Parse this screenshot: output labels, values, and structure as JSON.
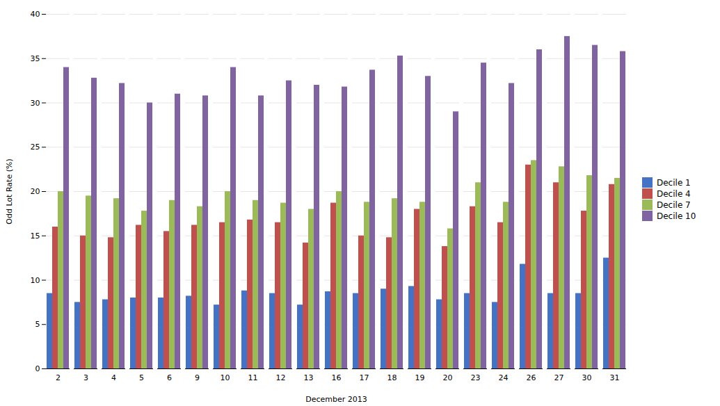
{
  "chart_data": {
    "type": "bar",
    "categories": [
      "2",
      "3",
      "4",
      "5",
      "6",
      "9",
      "10",
      "11",
      "12",
      "13",
      "16",
      "17",
      "18",
      "19",
      "20",
      "23",
      "24",
      "26",
      "27",
      "30",
      "31"
    ],
    "series": [
      {
        "name": "Decile 1",
        "color": "#4472C4",
        "values": [
          8.5,
          7.5,
          7.8,
          8.0,
          8.0,
          8.2,
          7.2,
          8.8,
          8.5,
          7.2,
          8.7,
          8.5,
          9.0,
          9.3,
          7.8,
          8.5,
          7.5,
          11.8,
          8.5,
          8.5,
          12.5
        ]
      },
      {
        "name": "Decile 4",
        "color": "#C0504D",
        "values": [
          16.0,
          15.0,
          14.8,
          16.2,
          15.5,
          16.2,
          16.5,
          16.8,
          16.5,
          14.2,
          18.7,
          15.0,
          14.8,
          18.0,
          13.8,
          18.3,
          16.5,
          23.0,
          21.0,
          17.8,
          20.8
        ]
      },
      {
        "name": "Decile 7",
        "color": "#9BBB59",
        "values": [
          20.0,
          19.5,
          19.2,
          17.8,
          19.0,
          18.3,
          20.0,
          19.0,
          18.7,
          18.0,
          20.0,
          18.8,
          19.2,
          18.8,
          15.8,
          21.0,
          18.8,
          23.5,
          22.8,
          21.8,
          21.5
        ]
      },
      {
        "name": "Decile 10",
        "color": "#8064A2",
        "values": [
          34.0,
          32.8,
          32.2,
          30.0,
          31.0,
          30.8,
          34.0,
          30.8,
          32.5,
          32.0,
          31.8,
          33.7,
          35.3,
          33.0,
          29.0,
          34.5,
          32.2,
          36.0,
          37.5,
          36.5,
          35.8
        ]
      }
    ],
    "xlabel": "December 2013",
    "ylabel": "Odd Lot Rate (%)",
    "ylim": [
      0,
      40
    ],
    "yticks": [
      0,
      5,
      10,
      15,
      20,
      25,
      30,
      35,
      40
    ],
    "grid": true,
    "legend": "right"
  }
}
